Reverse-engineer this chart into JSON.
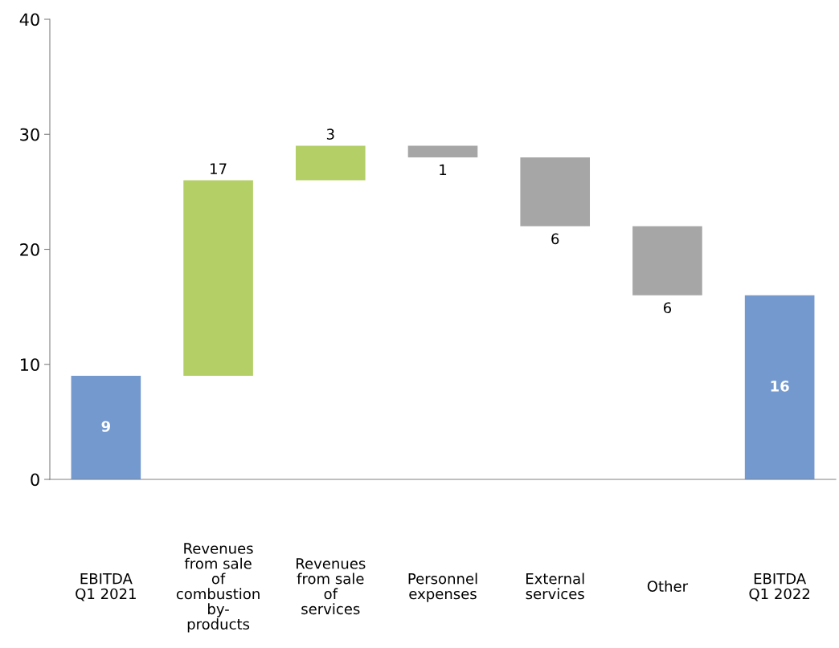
{
  "chart_data": {
    "type": "bar",
    "categories": [
      "EBITDA\nQ1 2021",
      "Revenues\nfrom sale\nof\ncombustion\nby-\nproducts",
      "Revenues\nfrom sale\nof\nservices",
      "Personnel\nexpenses",
      "External\nservices",
      "Other",
      "EBITDA\nQ1 2022"
    ],
    "values": [
      9,
      17,
      3,
      -1,
      -6,
      -6,
      16
    ],
    "base": [
      0,
      9,
      26,
      29,
      28,
      22,
      0
    ],
    "colors": [
      "#7399cf",
      "#b3cf66",
      "#b3cf66",
      "#a6a6a6",
      "#a6a6a6",
      "#a6a6a6",
      "#7399cf"
    ],
    "value_labels": [
      "9",
      "17",
      "3",
      "1",
      "6",
      "6",
      "16"
    ],
    "ylim": [
      0,
      40
    ],
    "yticks": [
      0,
      10,
      20,
      30,
      40
    ],
    "grid": false,
    "legend": false
  }
}
